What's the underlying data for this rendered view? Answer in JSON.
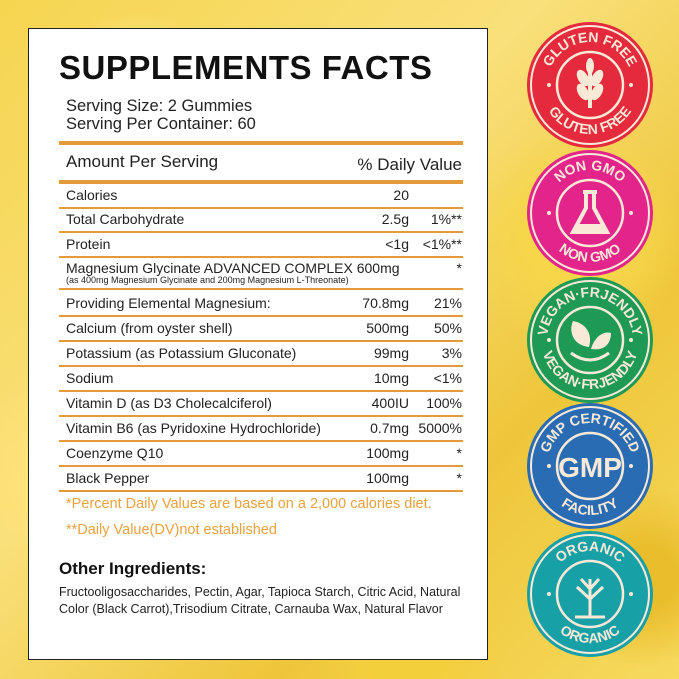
{
  "label": {
    "title": "SUPPLEMENTS FACTS",
    "serving_size": "Serving Size: 2 Gummies",
    "serving_per_container": "Serving Per Container: 60",
    "header_amount": "Amount Per Serving",
    "header_dv": "% Daily Value",
    "rows": [
      {
        "name": "Calories",
        "amount": "20",
        "dv": ""
      },
      {
        "name": "Total Carbohydrate",
        "amount": "2.5g",
        "dv": "1%**"
      },
      {
        "name": "Protein",
        "amount": "<1g",
        "dv": "<1%**"
      },
      {
        "name": "Magnesium Glycinate ADVANCED COMPLEX 600mg",
        "sub": "(as 400mg Magnesium Glycinate and 200mg Magnesium L-Threonate)",
        "amount": "",
        "dv": "*"
      },
      {
        "name": "Providing Elemental Magnesium:",
        "amount": "70.8mg",
        "dv": "21%"
      },
      {
        "name": "Calcium (from oyster shell)",
        "amount": "500mg",
        "dv": "50%"
      },
      {
        "name": "Potassium (as Potassium Gluconate)",
        "amount": "99mg",
        "dv": "3%"
      },
      {
        "name": "Sodium",
        "amount": "10mg",
        "dv": "<1%"
      },
      {
        "name": "Vitamin D (as D3 Cholecalciferol)",
        "amount": "400IU",
        "dv": "100%"
      },
      {
        "name": "Vitamin B6 (as Pyridoxine Hydrochloride)",
        "amount": "0.7mg",
        "dv": "5000%"
      },
      {
        "name": "Coenzyme Q10",
        "amount": "100mg",
        "dv": "*"
      },
      {
        "name": "Black Pepper",
        "amount": "100mg",
        "dv": "*"
      }
    ],
    "footnote_1": "*Percent Daily Values are based on a 2,000 calories diet.",
    "footnote_2": "**Daily Value(DV)not established",
    "other_ingredients_title": "Other Ingredients:",
    "other_ingredients": "Fructooligosaccharides, Pectin, Agar, Tapioca Starch, Citric Acid, Natural Color (Black Carrot),Trisodium Citrate, Carnauba Wax, Natural Flavor"
  },
  "badges": [
    {
      "top": "GLUTEN FREE",
      "bottom": "GLUTEN FREE",
      "icon": "wheat-icon",
      "color": "#e52a3d"
    },
    {
      "top": "NON GMO",
      "bottom": "NON GMO",
      "icon": "flask-icon",
      "color": "#e3258b"
    },
    {
      "top": "VEGAN·FRJENDLY",
      "bottom": "VEGAN·FRJENDLY",
      "icon": "leaves-icon",
      "color": "#1e9a55"
    },
    {
      "top": "GMP CERTIFIED",
      "bottom": "FACILITY",
      "center": "GMP",
      "icon": "gmp-icon",
      "color": "#2a6cb3"
    },
    {
      "top": "ORGANIC",
      "bottom": "ORGANIC",
      "icon": "plant-icon",
      "color": "#17a0a6"
    }
  ],
  "colors": {
    "accent_line": "#e59a3a",
    "footnote": "#e9a23d"
  }
}
